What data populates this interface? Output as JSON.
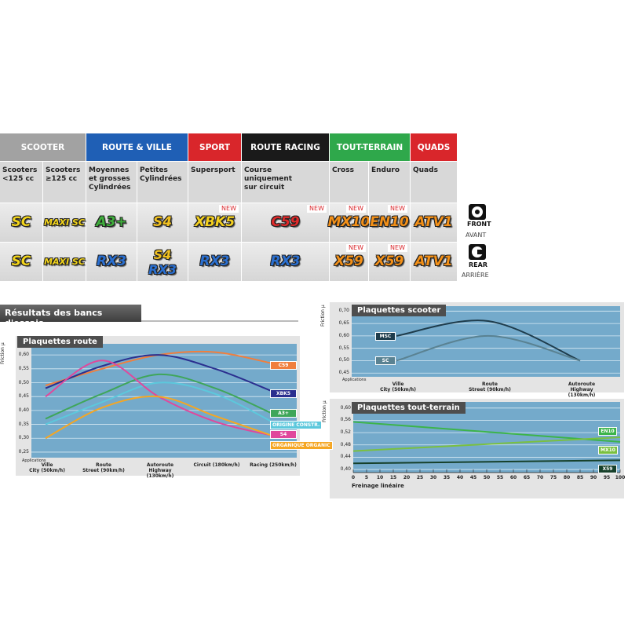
{
  "groups": [
    {
      "label": "SCOOTER",
      "color": "#a2a2a2",
      "columns": [
        {
          "lines": [
            "Scooters",
            "<125 cc"
          ],
          "front": [
            {
              "label": "SC",
              "color": "#f2d41c"
            }
          ],
          "rear": [
            {
              "label": "SC",
              "color": "#f2d41c"
            }
          ]
        },
        {
          "lines": [
            "Scooters",
            "≥125 cc"
          ],
          "front": [
            {
              "label": "MAXI SC",
              "color": "#f2d41c"
            }
          ],
          "rear": [
            {
              "label": "MAXI SC",
              "color": "#f2d41c"
            }
          ]
        }
      ]
    },
    {
      "label": "ROUTE & VILLE",
      "color": "#1f5fb5",
      "columns": [
        {
          "lines": [
            "Moyennes",
            "et grosses",
            "Cylindrées"
          ],
          "front": [
            {
              "label": "A3+",
              "color": "#3fae3c"
            }
          ],
          "rear": [
            {
              "label": "RX3",
              "color": "#2a6fd0"
            }
          ]
        },
        {
          "lines": [
            "Petites",
            "Cylindrées"
          ],
          "front": [
            {
              "label": "S4",
              "color": "#f0c020"
            }
          ],
          "rear": [
            {
              "label": "S4",
              "color": "#f0c020"
            },
            {
              "label": "RX3",
              "color": "#2a6fd0"
            }
          ]
        }
      ]
    },
    {
      "label": "SPORT",
      "color": "#d9262b",
      "columns": [
        {
          "lines": [
            "Supersport"
          ],
          "front": [
            {
              "label": "XBK5",
              "color": "#f4d020",
              "tag": "NEW"
            }
          ],
          "rear": [
            {
              "label": "RX3",
              "color": "#2a6fd0"
            }
          ]
        }
      ]
    },
    {
      "label": "ROUTE RACING",
      "color": "#1a1a1a",
      "columns": [
        {
          "lines": [
            "Course",
            "uniquement",
            "sur circuit"
          ],
          "front": [
            {
              "label": "C59",
              "color": "#e02a2a",
              "tag": "NEW"
            }
          ],
          "rear": [
            {
              "label": "RX3",
              "color": "#2a6fd0"
            }
          ]
        }
      ]
    },
    {
      "label": "TOUT-TERRAIN",
      "color": "#2fa84b",
      "columns": [
        {
          "lines": [
            "Cross"
          ],
          "front": [
            {
              "label": "MX10",
              "color": "#f39018",
              "tag": "NEW"
            }
          ],
          "rear": [
            {
              "label": "X59",
              "color": "#f39018",
              "tag": "NEW"
            }
          ]
        },
        {
          "lines": [
            "Enduro"
          ],
          "front": [
            {
              "label": "EN10",
              "color": "#f39018",
              "tag": "NEW"
            }
          ],
          "rear": [
            {
              "label": "X59",
              "color": "#f39018",
              "tag": "NEW"
            }
          ]
        }
      ]
    },
    {
      "label": "QUADS",
      "color": "#d9262b",
      "columns": [
        {
          "lines": [
            "Quads"
          ],
          "front": [
            {
              "label": "ATV1",
              "color": "#f39018"
            }
          ],
          "rear": [
            {
              "label": "ATV1",
              "color": "#f39018"
            }
          ]
        }
      ]
    }
  ],
  "position": {
    "front": "FRONT",
    "front_fr": "AVANT",
    "rear": "REAR",
    "rear_fr": "ARRIÈRE"
  },
  "section_title": "Résultats des bancs d'essais",
  "chart_data": [
    {
      "type": "line",
      "title": "Plaquettes route",
      "y_label": "Friction μ",
      "x_label": "Applications",
      "categories": [
        "Ville\nCity (50km/h)",
        "Route\nStreet (90km/h)",
        "Autoroute\nHighway (130km/h)",
        "Circuit (180km/h)",
        "Racing (250km/h)"
      ],
      "ylim": [
        0.23,
        0.64
      ],
      "yticks": [
        {
          "value": 0.25,
          "label": "0,25"
        },
        {
          "value": 0.3,
          "label": "0,30"
        },
        {
          "value": 0.35,
          "label": "0,35"
        },
        {
          "value": 0.4,
          "label": "0,40"
        },
        {
          "value": 0.45,
          "label": "0,45"
        },
        {
          "value": 0.5,
          "label": "0,50"
        },
        {
          "value": 0.55,
          "label": "0,55"
        },
        {
          "value": 0.6,
          "label": "0,60"
        }
      ],
      "grid": true,
      "series": [
        {
          "name": "C59",
          "color": "#f07f3e",
          "values": [
            0.49,
            0.55,
            0.6,
            0.61,
            0.57
          ]
        },
        {
          "name": "XBK5",
          "color": "#2b2f8f",
          "values": [
            0.48,
            0.56,
            0.6,
            0.55,
            0.47
          ]
        },
        {
          "name": "A3+",
          "color": "#3fa65a",
          "values": [
            0.37,
            0.46,
            0.53,
            0.48,
            0.39
          ]
        },
        {
          "name": "ORIGINE CONSTR.",
          "color": "#5cc8dc",
          "values": [
            0.35,
            0.43,
            0.5,
            0.46,
            0.36
          ]
        },
        {
          "name": "S4",
          "color": "#e0489c",
          "values": [
            0.45,
            0.58,
            0.45,
            0.36,
            0.31
          ]
        },
        {
          "name": "ORGANIQUE ORGANIC",
          "color": "#f5a623",
          "values": [
            0.3,
            0.41,
            0.45,
            0.38,
            0.31
          ]
        }
      ]
    },
    {
      "type": "line",
      "title": "Plaquettes scooter",
      "y_label": "Friction μ",
      "x_label": "Applications",
      "categories": [
        "Ville\nCity (50km/h)",
        "Route\nStreet (90km/h)",
        "Autoroute\nHighway (130km/h)"
      ],
      "ylim": [
        0.435,
        0.72
      ],
      "yticks": [
        {
          "value": 0.45,
          "label": "0,45"
        },
        {
          "value": 0.5,
          "label": "0,50"
        },
        {
          "value": 0.55,
          "label": "0,55"
        },
        {
          "value": 0.6,
          "label": "0,60"
        },
        {
          "value": 0.65,
          "label": "0,65"
        },
        {
          "value": 0.7,
          "label": "0,70"
        }
      ],
      "grid": true,
      "series": [
        {
          "name": "MSC",
          "color": "#1e3c4c",
          "values": [
            0.6,
            0.66,
            0.5
          ]
        },
        {
          "name": "SC",
          "color": "#5a8292",
          "values": [
            0.5,
            0.6,
            0.5
          ]
        }
      ]
    },
    {
      "type": "line",
      "title": "Plaquettes tout-terrain",
      "y_label": "Friction μ",
      "x_label": "Freinage linéaire",
      "x": [
        0,
        100
      ],
      "xlim": [
        0,
        100
      ],
      "xticks": [
        0,
        5,
        10,
        15,
        20,
        25,
        30,
        35,
        40,
        45,
        50,
        55,
        60,
        65,
        70,
        75,
        80,
        85,
        90,
        95,
        100
      ],
      "ylim": [
        0.39,
        0.62
      ],
      "yticks": [
        {
          "value": 0.4,
          "label": "0,40"
        },
        {
          "value": 0.44,
          "label": "0,44"
        },
        {
          "value": 0.48,
          "label": "0,48"
        },
        {
          "value": 0.52,
          "label": "0,52"
        },
        {
          "value": 0.56,
          "label": "0,56"
        },
        {
          "value": 0.6,
          "label": "0,60"
        }
      ],
      "grid": true,
      "series": [
        {
          "name": "EN10",
          "color": "#3cb44a",
          "values": [
            0.555,
            0.49
          ]
        },
        {
          "name": "MX10",
          "color": "#7ac040",
          "values": [
            0.46,
            0.505
          ]
        },
        {
          "name": "X59",
          "color": "#16402a",
          "values": [
            0.42,
            0.43
          ]
        }
      ]
    }
  ]
}
